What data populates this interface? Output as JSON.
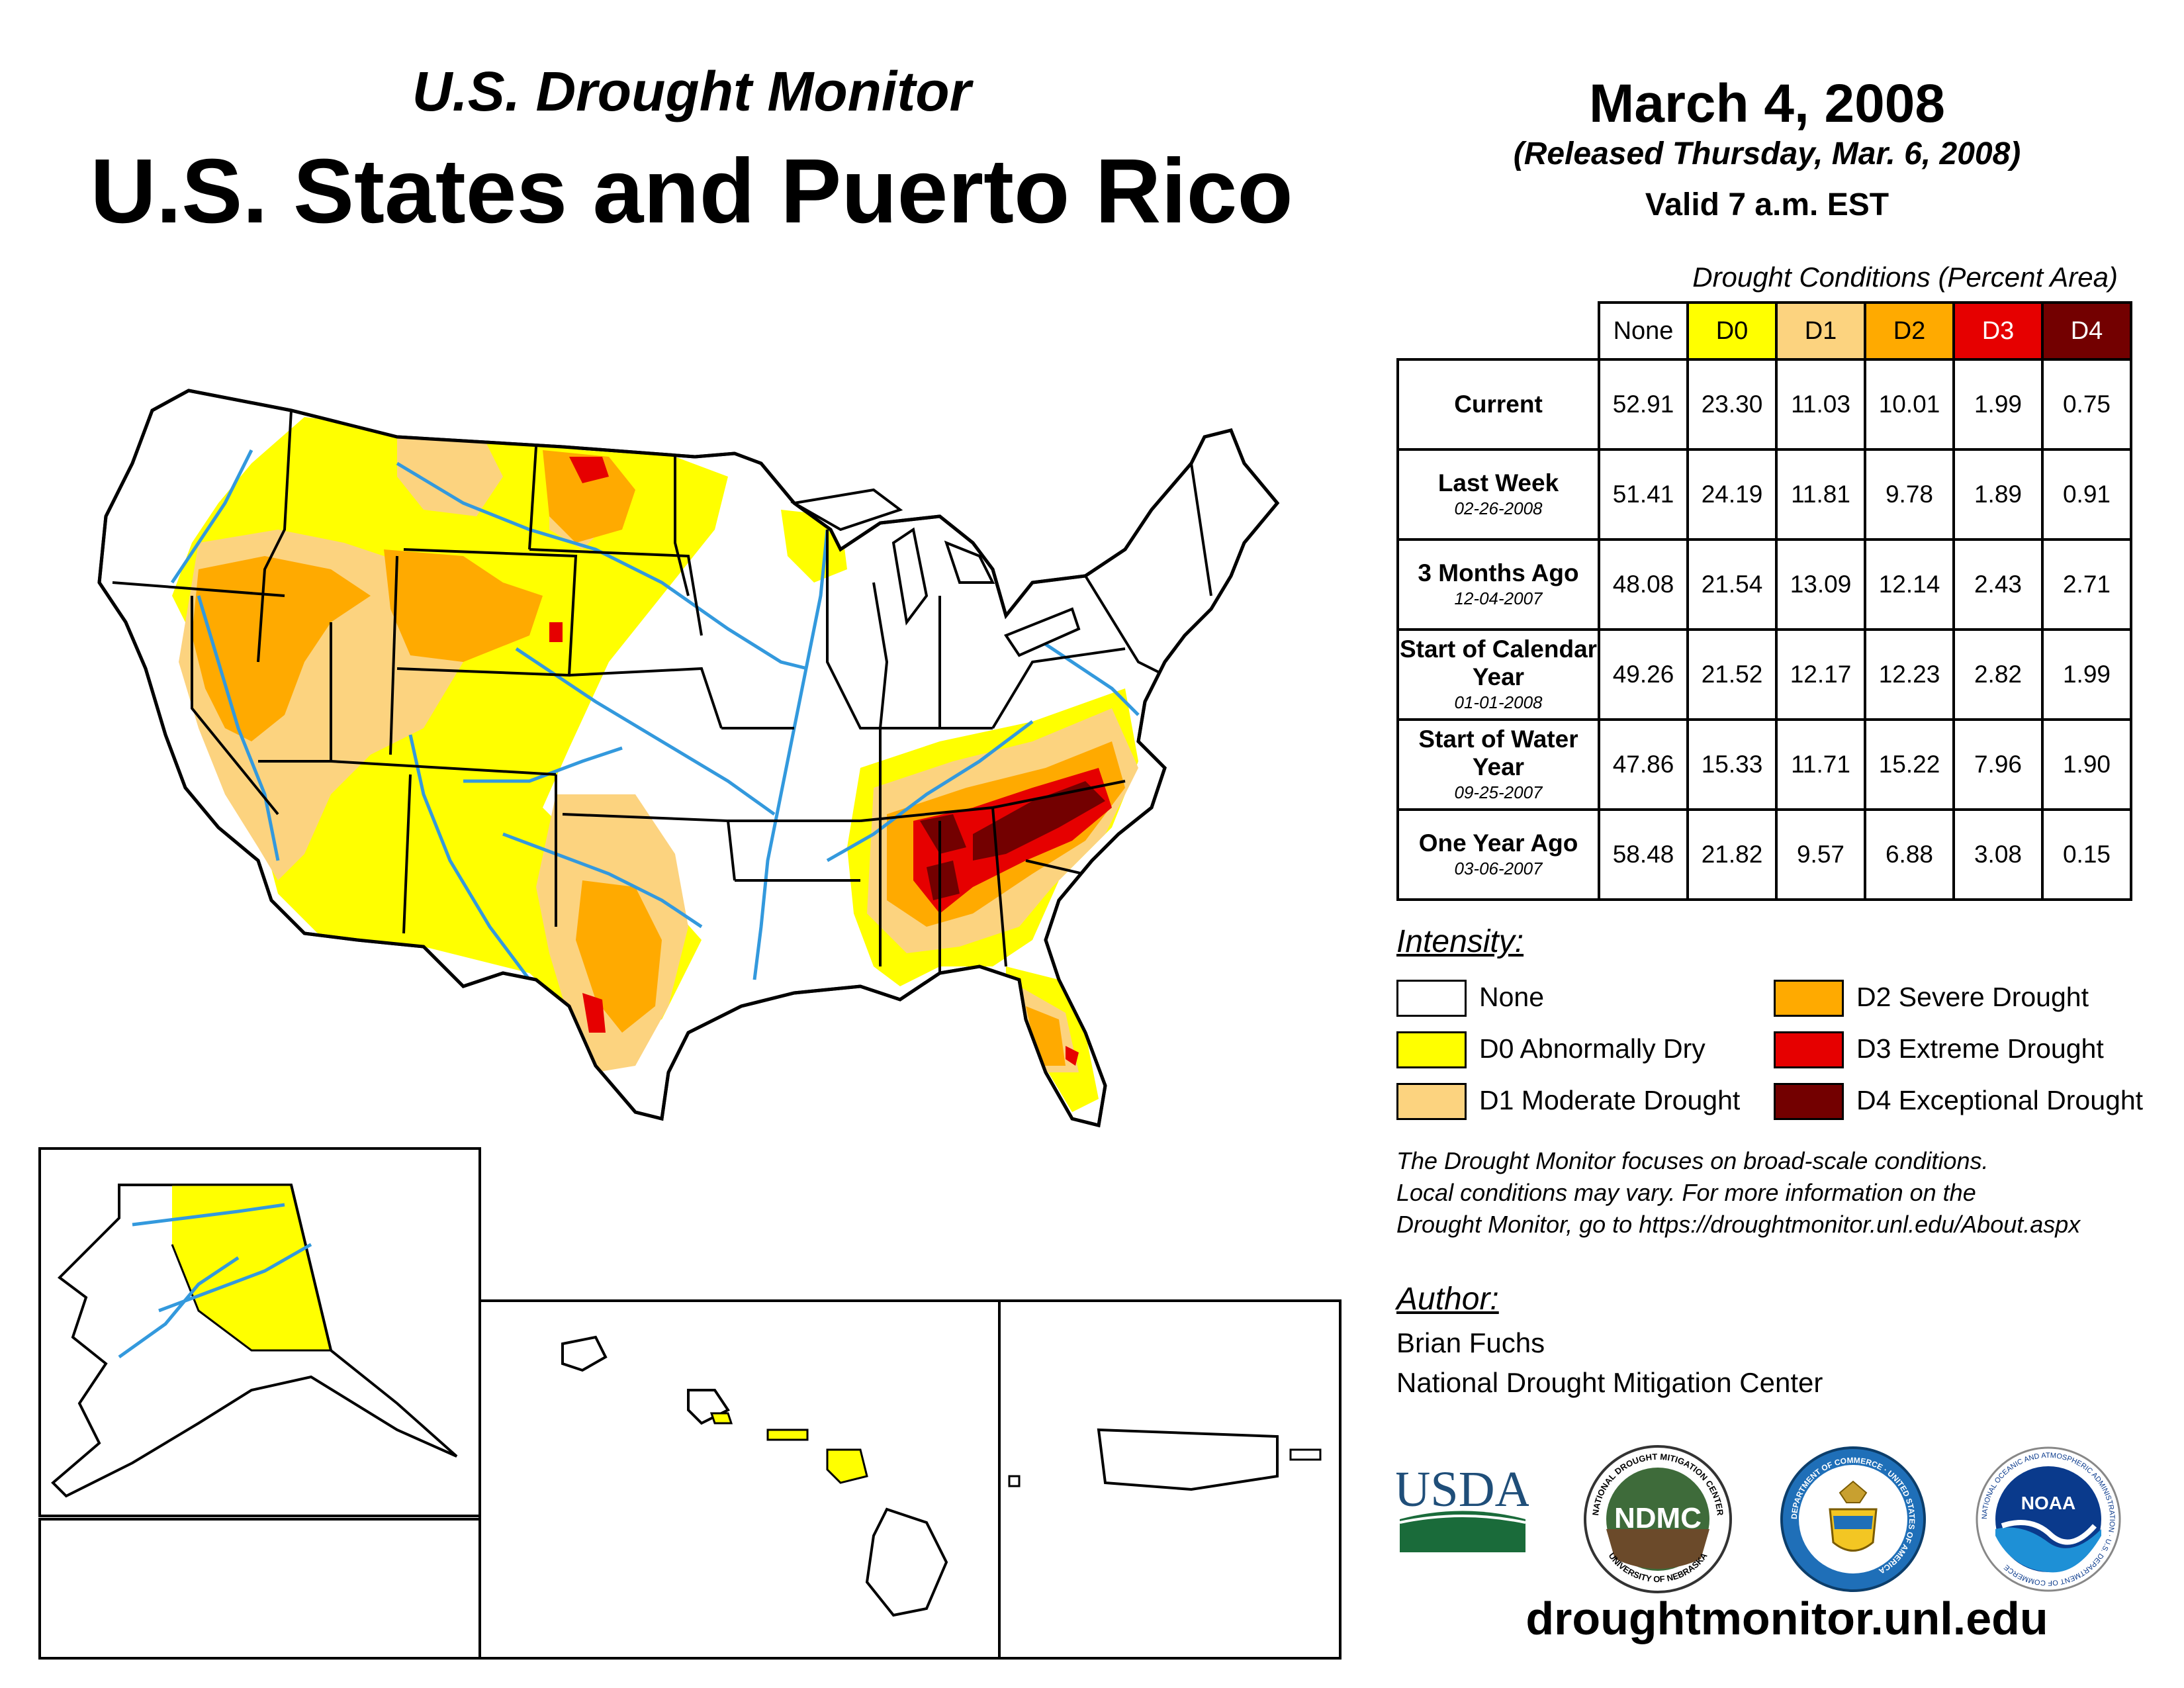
{
  "header": {
    "subtitle": "U.S. Drought Monitor",
    "title": "U.S. States and Puerto Rico",
    "date": "March 4, 2008",
    "released": "(Released Thursday, Mar. 6, 2008)",
    "valid": "Valid 7 a.m. EST"
  },
  "table": {
    "caption": "Drought Conditions (Percent Area)",
    "columns": [
      {
        "label": "None",
        "color": "#ffffff"
      },
      {
        "label": "D0",
        "color": "#ffff00"
      },
      {
        "label": "D1",
        "color": "#fcd37f"
      },
      {
        "label": "D2",
        "color": "#ffaa00"
      },
      {
        "label": "D3",
        "color": "#e60000"
      },
      {
        "label": "D4",
        "color": "#730000"
      }
    ],
    "rows": [
      {
        "label": "Current",
        "date": "",
        "values": [
          "52.91",
          "23.30",
          "11.03",
          "10.01",
          "1.99",
          "0.75"
        ]
      },
      {
        "label": "Last Week",
        "date": "02-26-2008",
        "values": [
          "51.41",
          "24.19",
          "11.81",
          "9.78",
          "1.89",
          "0.91"
        ]
      },
      {
        "label": "3 Months Ago",
        "date": "12-04-2007",
        "values": [
          "48.08",
          "21.54",
          "13.09",
          "12.14",
          "2.43",
          "2.71"
        ]
      },
      {
        "label": "Start of Calendar Year",
        "date": "01-01-2008",
        "values": [
          "49.26",
          "21.52",
          "12.17",
          "12.23",
          "2.82",
          "1.99"
        ]
      },
      {
        "label": "Start of Water Year",
        "date": "09-25-2007",
        "values": [
          "47.86",
          "15.33",
          "11.71",
          "15.22",
          "7.96",
          "1.90"
        ]
      },
      {
        "label": "One Year Ago",
        "date": "03-06-2007",
        "values": [
          "58.48",
          "21.82",
          "9.57",
          "6.88",
          "3.08",
          "0.15"
        ]
      }
    ]
  },
  "legend": {
    "title": "Intensity:",
    "items": [
      {
        "label": "None",
        "color": "#ffffff"
      },
      {
        "label": "D0 Abnormally Dry",
        "color": "#ffff00"
      },
      {
        "label": "D1 Moderate Drought",
        "color": "#fcd37f"
      },
      {
        "label": "D2 Severe Drought",
        "color": "#ffaa00"
      },
      {
        "label": "D3 Extreme Drought",
        "color": "#e60000"
      },
      {
        "label": "D4 Exceptional Drought",
        "color": "#730000"
      }
    ]
  },
  "note": {
    "line1": "The Drought Monitor focuses on broad-scale conditions.",
    "line2": "Local conditions may vary. For more information on the",
    "line3": "Drought Monitor, go to https://droughtmonitor.unl.edu/About.aspx"
  },
  "author": {
    "title": "Author:",
    "name": "Brian Fuchs",
    "org": "National Drought Mitigation Center"
  },
  "logos": {
    "usda": "USDA",
    "ndmc": "NDMC",
    "ndmc_ring_top": "NATIONAL DROUGHT MITIGATION CENTER",
    "ndmc_ring_bottom": "UNIVERSITY OF NEBRASKA",
    "commerce_ring": "DEPARTMENT OF COMMERCE · UNITED STATES OF AMERICA",
    "noaa": "NOAA",
    "noaa_ring": "NATIONAL OCEANIC AND ATMOSPHERIC ADMINISTRATION · U.S. DEPARTMENT OF COMMERCE"
  },
  "url": "droughtmonitor.unl.edu",
  "colors": {
    "river": "#3399dd",
    "d0": "#ffff00",
    "d1": "#fcd37f",
    "d2": "#ffaa00",
    "d3": "#e60000",
    "d4": "#730000"
  }
}
